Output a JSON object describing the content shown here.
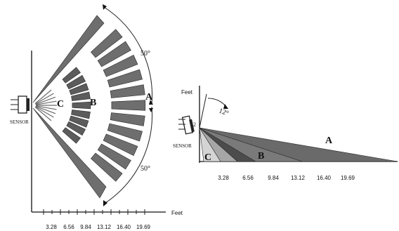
{
  "top_view": {
    "axis_label": "Feet",
    "ticks": [
      "3.28",
      "6.56",
      "9.84",
      "13.12",
      "16.40",
      "19.69"
    ],
    "sensor_label": "SENSOR",
    "zones": [
      "A",
      "B",
      "C"
    ],
    "angle_top": "50°",
    "angle_bottom": "50°"
  },
  "side_view": {
    "axis_label": "Feet",
    "ticks": [
      "3.28",
      "6.56",
      "9.84",
      "13.12",
      "16.40",
      "19.69"
    ],
    "sensor_label": "SENSOR",
    "zones": [
      "A",
      "B",
      "C"
    ],
    "tilt_angle": "12°",
    "offset_label": "2"
  },
  "colors": {
    "zone_a": "#6e6e6e",
    "zone_b": "#5c5c5c",
    "zone_light": "#d4d4d4",
    "zone_mid": "#a6a6a6",
    "ink": "#111111"
  }
}
